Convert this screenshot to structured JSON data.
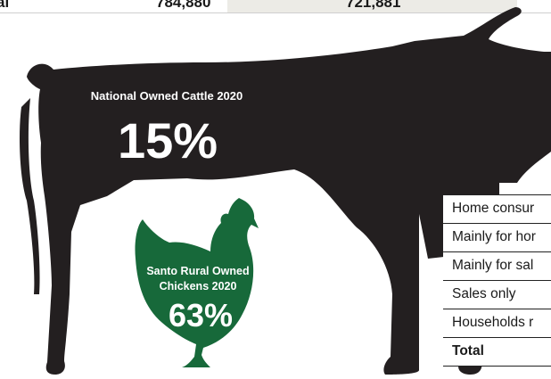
{
  "top_row": {
    "c0": "al",
    "c1": "784,880",
    "c2": "721,881"
  },
  "cattle": {
    "title": "National Owned Cattle 2020",
    "percent": "15%"
  },
  "chickens": {
    "title": "Santo Rural Owned Chickens 2020",
    "percent": "63%"
  },
  "table_rows": [
    {
      "label": "Home consur"
    },
    {
      "label": "Mainly for hor"
    },
    {
      "label": "Mainly for sal"
    },
    {
      "label": "Sales only"
    },
    {
      "label": "Households r"
    },
    {
      "label": "Total"
    }
  ],
  "colors": {
    "cow": "#231f20",
    "hen": "#17693a",
    "table_shade": "#ecebe6"
  }
}
